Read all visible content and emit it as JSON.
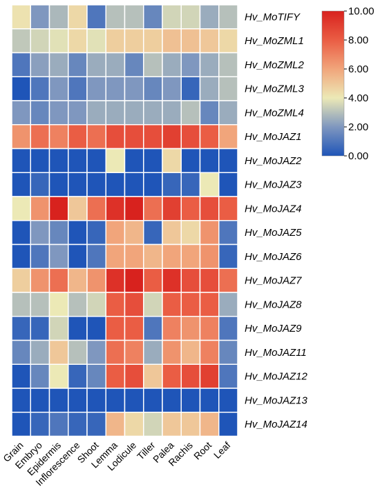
{
  "chart_data": {
    "type": "heatmap",
    "rows": [
      "Hv_MoTIFY",
      "Hv_MoZML1",
      "Hv_MoZML2",
      "Hv_MoZML3",
      "Hv_MoZML4",
      "Hv_MoJAZ1",
      "Hv_MoJAZ2",
      "Hv_MoJAZ3",
      "Hv_MoJAZ4",
      "Hv_MoJAZ5",
      "Hv_MoJAZ6",
      "Hv_MoJAZ7",
      "Hv_MoJAZ8",
      "Hv_MoJAZ9",
      "Hv_MoJAZ11",
      "Hv_MoJAZ12",
      "Hv_MoJAZ13",
      "Hv_MoJAZ14"
    ],
    "columns": [
      "Grain",
      "Embryo",
      "Epidermis",
      "Inflorescence",
      "Shoot",
      "Lemma",
      "Lodicule",
      "Tiller",
      "Palea",
      "Rachis",
      "Root",
      "Leaf"
    ],
    "values": [
      [
        4.2,
        2.0,
        2.8,
        4.5,
        1.0,
        3.0,
        3.0,
        1.5,
        3.5,
        3.5,
        2.5,
        3.0
      ],
      [
        3.2,
        3.5,
        3.8,
        4.5,
        3.8,
        4.8,
        4.8,
        4.8,
        5.2,
        5.2,
        5.0,
        4.5
      ],
      [
        1.0,
        2.2,
        2.5,
        1.5,
        2.5,
        2.5,
        1.5,
        3.0,
        2.5,
        2.0,
        2.5,
        3.0
      ],
      [
        0.0,
        1.0,
        2.0,
        1.0,
        2.0,
        2.0,
        2.0,
        1.5,
        2.0,
        0.5,
        2.5,
        3.0
      ],
      [
        2.0,
        1.5,
        2.0,
        2.0,
        2.5,
        2.5,
        2.5,
        2.5,
        2.5,
        3.0,
        1.5,
        2.5
      ],
      [
        6.5,
        7.5,
        7.0,
        8.0,
        7.5,
        8.5,
        8.5,
        8.5,
        9.0,
        8.5,
        8.0,
        6.0
      ],
      [
        0.0,
        0.0,
        0.0,
        0.0,
        0.0,
        4.0,
        0.0,
        0.0,
        4.5,
        0.0,
        0.0,
        0.0
      ],
      [
        0.0,
        0.5,
        0.0,
        0.0,
        0.0,
        0.0,
        0.0,
        0.0,
        0.5,
        0.5,
        4.0,
        0.0
      ],
      [
        4.0,
        6.5,
        10.0,
        5.0,
        7.5,
        9.5,
        10.0,
        7.5,
        9.0,
        8.0,
        8.5,
        8.0
      ],
      [
        0.0,
        2.0,
        1.5,
        0.0,
        0.5,
        6.0,
        5.5,
        0.5,
        5.0,
        4.5,
        6.5,
        1.0
      ],
      [
        0.0,
        1.0,
        2.0,
        0.0,
        1.0,
        6.0,
        6.0,
        5.5,
        6.0,
        6.0,
        6.5,
        0.5
      ],
      [
        4.8,
        6.5,
        7.5,
        5.5,
        6.5,
        9.5,
        10.0,
        8.0,
        9.5,
        8.5,
        8.5,
        7.5
      ],
      [
        3.0,
        3.0,
        4.0,
        3.0,
        3.5,
        8.0,
        8.5,
        3.5,
        8.0,
        8.0,
        8.0,
        2.5
      ],
      [
        0.5,
        0.5,
        3.5,
        0.0,
        0.0,
        8.0,
        8.0,
        1.0,
        7.0,
        6.5,
        7.0,
        1.0
      ],
      [
        1.5,
        2.5,
        5.0,
        3.0,
        2.0,
        7.5,
        7.0,
        2.5,
        6.5,
        5.5,
        7.0,
        1.5
      ],
      [
        0.0,
        1.5,
        4.0,
        0.5,
        1.5,
        8.0,
        8.5,
        5.0,
        8.0,
        8.5,
        9.0,
        1.0
      ],
      [
        0.0,
        0.0,
        0.0,
        0.0,
        0.0,
        0.0,
        0.0,
        0.0,
        0.0,
        0.0,
        0.0,
        0.0
      ],
      [
        0.0,
        0.5,
        1.0,
        0.5,
        0.5,
        5.5,
        4.5,
        3.5,
        5.0,
        5.0,
        5.5,
        0.0
      ]
    ],
    "colorbar": {
      "min": 0,
      "max": 10,
      "ticks": [
        "10.00",
        "8.00",
        "6.00",
        "4.00",
        "2.00",
        "0.00"
      ],
      "stops": [
        {
          "value": 0,
          "color": "#1f55b8"
        },
        {
          "value": 2,
          "color": "#7f97bf"
        },
        {
          "value": 4,
          "color": "#ece9b6"
        },
        {
          "value": 6,
          "color": "#f1a57b"
        },
        {
          "value": 8,
          "color": "#ea5d44"
        },
        {
          "value": 10,
          "color": "#d8221e"
        }
      ]
    },
    "legend_position": "top-right",
    "grid": true
  }
}
